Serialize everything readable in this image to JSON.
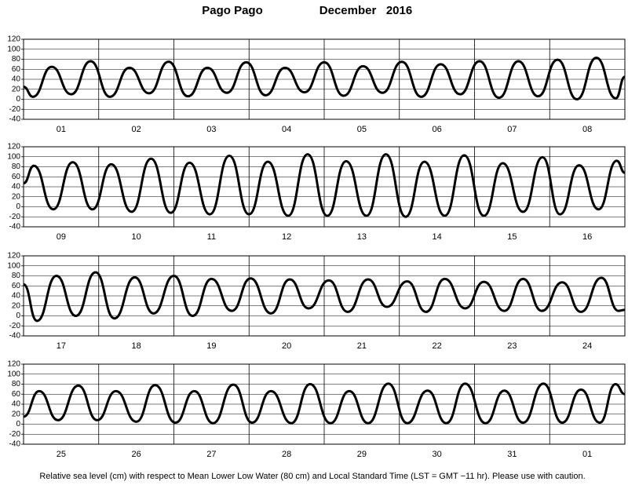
{
  "title": "Pago Pago",
  "subtitle": "December   2016",
  "footnote": "Relative sea level (cm) with respect to Mean Lower Low Water (80 cm) and Local Standard Time (LST = GMT −11 hr). Please use with caution.",
  "chart_data": [
    {
      "type": "line",
      "categories": [
        "01",
        "02",
        "03",
        "04",
        "05",
        "06",
        "07",
        "08"
      ],
      "xlim": [
        0,
        192
      ],
      "ylim": [
        -40,
        120
      ],
      "yticks": [
        -40,
        -20,
        0,
        20,
        40,
        60,
        80,
        100,
        120
      ],
      "grid": true,
      "x": [
        0,
        3,
        9,
        15.2,
        21.4,
        27.6,
        33.8,
        40.1,
        46.3,
        52.5,
        58.7,
        64.9,
        71.1,
        77.3,
        83.5,
        89.7,
        96,
        102.2,
        108.4,
        114.6,
        120.8,
        127,
        133.2,
        139.4,
        145.6,
        151.8,
        158,
        164.3,
        170.5,
        176.7,
        182.9,
        189.1,
        192
      ],
      "series": [
        {
          "color": "#000000",
          "values": [
            25,
            5,
            65,
            10,
            76,
            5,
            63,
            12,
            75,
            6,
            63,
            13,
            74,
            8,
            63,
            14,
            74,
            7,
            66,
            13,
            75,
            5,
            70,
            10,
            76,
            3,
            76,
            6,
            79,
            0,
            83,
            2,
            45
          ]
        }
      ]
    },
    {
      "type": "line",
      "categories": [
        "09",
        "10",
        "11",
        "12",
        "13",
        "14",
        "15",
        "16"
      ],
      "xlim": [
        0,
        192
      ],
      "ylim": [
        -40,
        120
      ],
      "yticks": [
        -40,
        -20,
        0,
        20,
        40,
        60,
        80,
        100,
        120
      ],
      "grid": true,
      "x": [
        0,
        3.3,
        9.5,
        15.7,
        22,
        28,
        34.5,
        40.7,
        47,
        53,
        59.5,
        65.7,
        72,
        78,
        84.5,
        90.7,
        97,
        103,
        109.5,
        115.7,
        122,
        128,
        134.5,
        140.7,
        147,
        153,
        159.5,
        165.7,
        171.3,
        177.4,
        183.6,
        189.4,
        192
      ],
      "series": [
        {
          "color": "#000000",
          "values": [
            47,
            82,
            -5,
            89,
            -5,
            85,
            -10,
            96,
            -12,
            88,
            -15,
            102,
            -15,
            90,
            -18,
            105,
            -18,
            91,
            -18,
            105,
            -20,
            90,
            -18,
            103,
            -18,
            87,
            -10,
            99,
            -15,
            83,
            -5,
            92,
            68
          ]
        }
      ]
    },
    {
      "type": "line",
      "categories": [
        "17",
        "18",
        "19",
        "20",
        "21",
        "22",
        "23",
        "24"
      ],
      "xlim": [
        0,
        192
      ],
      "ylim": [
        -40,
        120
      ],
      "yticks": [
        -40,
        -20,
        0,
        20,
        40,
        60,
        80,
        100,
        120
      ],
      "grid": true,
      "x": [
        0,
        4.3,
        10.5,
        16.7,
        23,
        29,
        35.5,
        41.5,
        48,
        54,
        60,
        66.5,
        72.5,
        79,
        85,
        91,
        97.5,
        103.5,
        110,
        116,
        122.5,
        128.5,
        134.5,
        141,
        147,
        153.5,
        159.5,
        165.5,
        172,
        178,
        184.5,
        190,
        192
      ],
      "series": [
        {
          "color": "#000000",
          "values": [
            63,
            -10,
            80,
            0,
            87,
            -5,
            77,
            5,
            80,
            0,
            74,
            10,
            75,
            5,
            73,
            15,
            71,
            8,
            73,
            18,
            69,
            8,
            74,
            15,
            68,
            10,
            74,
            10,
            67,
            8,
            76,
            10,
            12
          ]
        }
      ]
    },
    {
      "type": "line",
      "categories": [
        "25",
        "26",
        "27",
        "28",
        "29",
        "30",
        "31",
        "01"
      ],
      "xlim": [
        0,
        192
      ],
      "ylim": [
        -40,
        120
      ],
      "yticks": [
        -40,
        -20,
        0,
        20,
        40,
        60,
        80,
        100,
        120
      ],
      "grid": true,
      "x": [
        0,
        5,
        11,
        17.5,
        23.5,
        29.5,
        36,
        42,
        48.5,
        54.5,
        60.5,
        67,
        73,
        79,
        85.5,
        91.5,
        98,
        104,
        110,
        116.5,
        122.5,
        129,
        135,
        141,
        147.5,
        153.5,
        159.5,
        166,
        172,
        178,
        184,
        189,
        192
      ],
      "series": [
        {
          "color": "#000000",
          "values": [
            15,
            66,
            8,
            77,
            8,
            66,
            5,
            78,
            3,
            66,
            2,
            79,
            3,
            66,
            2,
            80,
            2,
            66,
            2,
            81,
            2,
            67,
            2,
            81,
            2,
            67,
            3,
            81,
            3,
            69,
            3,
            80,
            60
          ]
        }
      ]
    }
  ]
}
